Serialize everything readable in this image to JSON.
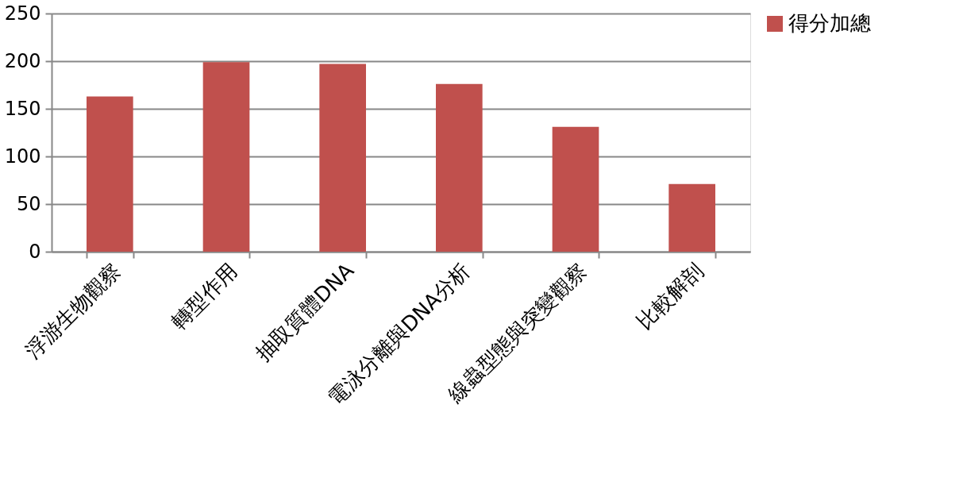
{
  "chart_data": {
    "type": "bar",
    "categories": [
      "浮游生物觀察",
      "轉型作用",
      "抽取質體DNA",
      "電泳分離與DNA分析",
      "線蟲型態與突變觀察",
      "比較解剖"
    ],
    "series": [
      {
        "name": "得分加總",
        "color": "#c0504d",
        "values": [
          163,
          199,
          197,
          176,
          131,
          71
        ]
      }
    ],
    "ylim": [
      0,
      250
    ],
    "yticks": [
      0,
      50,
      100,
      150,
      200,
      250
    ],
    "grid": "y",
    "legend": "right"
  }
}
